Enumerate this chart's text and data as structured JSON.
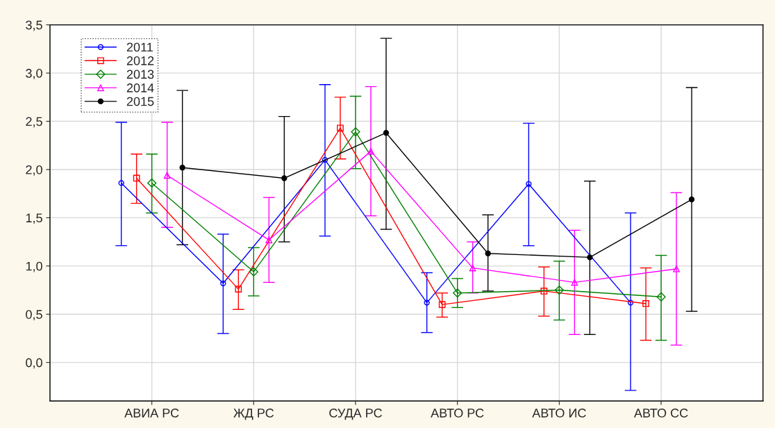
{
  "chart_data": {
    "type": "line",
    "categories": [
      "АВИА РС",
      "ЖД РС",
      "СУДА РС",
      "АВТО РС",
      "АВТО ИС",
      "АВТО СС"
    ],
    "series": [
      {
        "name": "2011",
        "color": "#0000ff",
        "marker": "circle",
        "values": [
          1.86,
          0.82,
          2.1,
          0.62,
          1.85,
          0.62
        ],
        "errors": [
          [
            1.21,
            2.49
          ],
          [
            0.3,
            1.33
          ],
          [
            1.31,
            2.88
          ],
          [
            0.31,
            0.93
          ],
          [
            1.21,
            2.48
          ],
          [
            -0.29,
            1.55
          ]
        ]
      },
      {
        "name": "2012",
        "color": "#ff0000",
        "marker": "square",
        "values": [
          1.91,
          0.76,
          2.43,
          0.6,
          0.74,
          0.61
        ],
        "errors": [
          [
            1.65,
            2.16
          ],
          [
            0.55,
            0.96
          ],
          [
            2.11,
            2.75
          ],
          [
            0.47,
            0.72
          ],
          [
            0.48,
            0.99
          ],
          [
            0.23,
            0.98
          ]
        ]
      },
      {
        "name": "2013",
        "color": "#008000",
        "marker": "diamond",
        "values": [
          1.86,
          0.94,
          2.39,
          0.72,
          0.75,
          0.68
        ],
        "errors": [
          [
            1.55,
            2.16
          ],
          [
            0.69,
            1.19
          ],
          [
            2.01,
            2.76
          ],
          [
            0.57,
            0.87
          ],
          [
            0.44,
            1.05
          ],
          [
            0.23,
            1.11
          ]
        ]
      },
      {
        "name": "2014",
        "color": "#ff00ff",
        "marker": "triangle",
        "values": [
          1.94,
          1.27,
          2.19,
          0.98,
          0.83,
          0.97
        ],
        "errors": [
          [
            1.4,
            2.49
          ],
          [
            0.83,
            1.71
          ],
          [
            1.52,
            2.86
          ],
          [
            0.72,
            1.25
          ],
          [
            0.29,
            1.37
          ],
          [
            0.18,
            1.76
          ]
        ]
      },
      {
        "name": "2015",
        "color": "#000000",
        "marker": "circle",
        "values": [
          2.02,
          1.91,
          2.38,
          1.13,
          1.09,
          1.69
        ],
        "errors": [
          [
            1.22,
            2.82
          ],
          [
            1.25,
            2.55
          ],
          [
            1.38,
            3.36
          ],
          [
            0.74,
            1.53
          ],
          [
            0.29,
            1.88
          ],
          [
            0.53,
            2.85
          ]
        ]
      }
    ],
    "ylim": [
      -0.4,
      3.5
    ],
    "yticks": [
      {
        "value": 0,
        "label": "0,0"
      },
      {
        "value": 0.5,
        "label": "0,5"
      },
      {
        "value": 1,
        "label": "1,0"
      },
      {
        "value": 1.5,
        "label": "1,5"
      },
      {
        "value": 2,
        "label": "2,0"
      },
      {
        "value": 2.5,
        "label": "2,5"
      },
      {
        "value": 3,
        "label": "3,0"
      },
      {
        "value": 3.5,
        "label": "3,5"
      }
    ],
    "grid": true,
    "legend": "top left",
    "line_style": "solid"
  }
}
